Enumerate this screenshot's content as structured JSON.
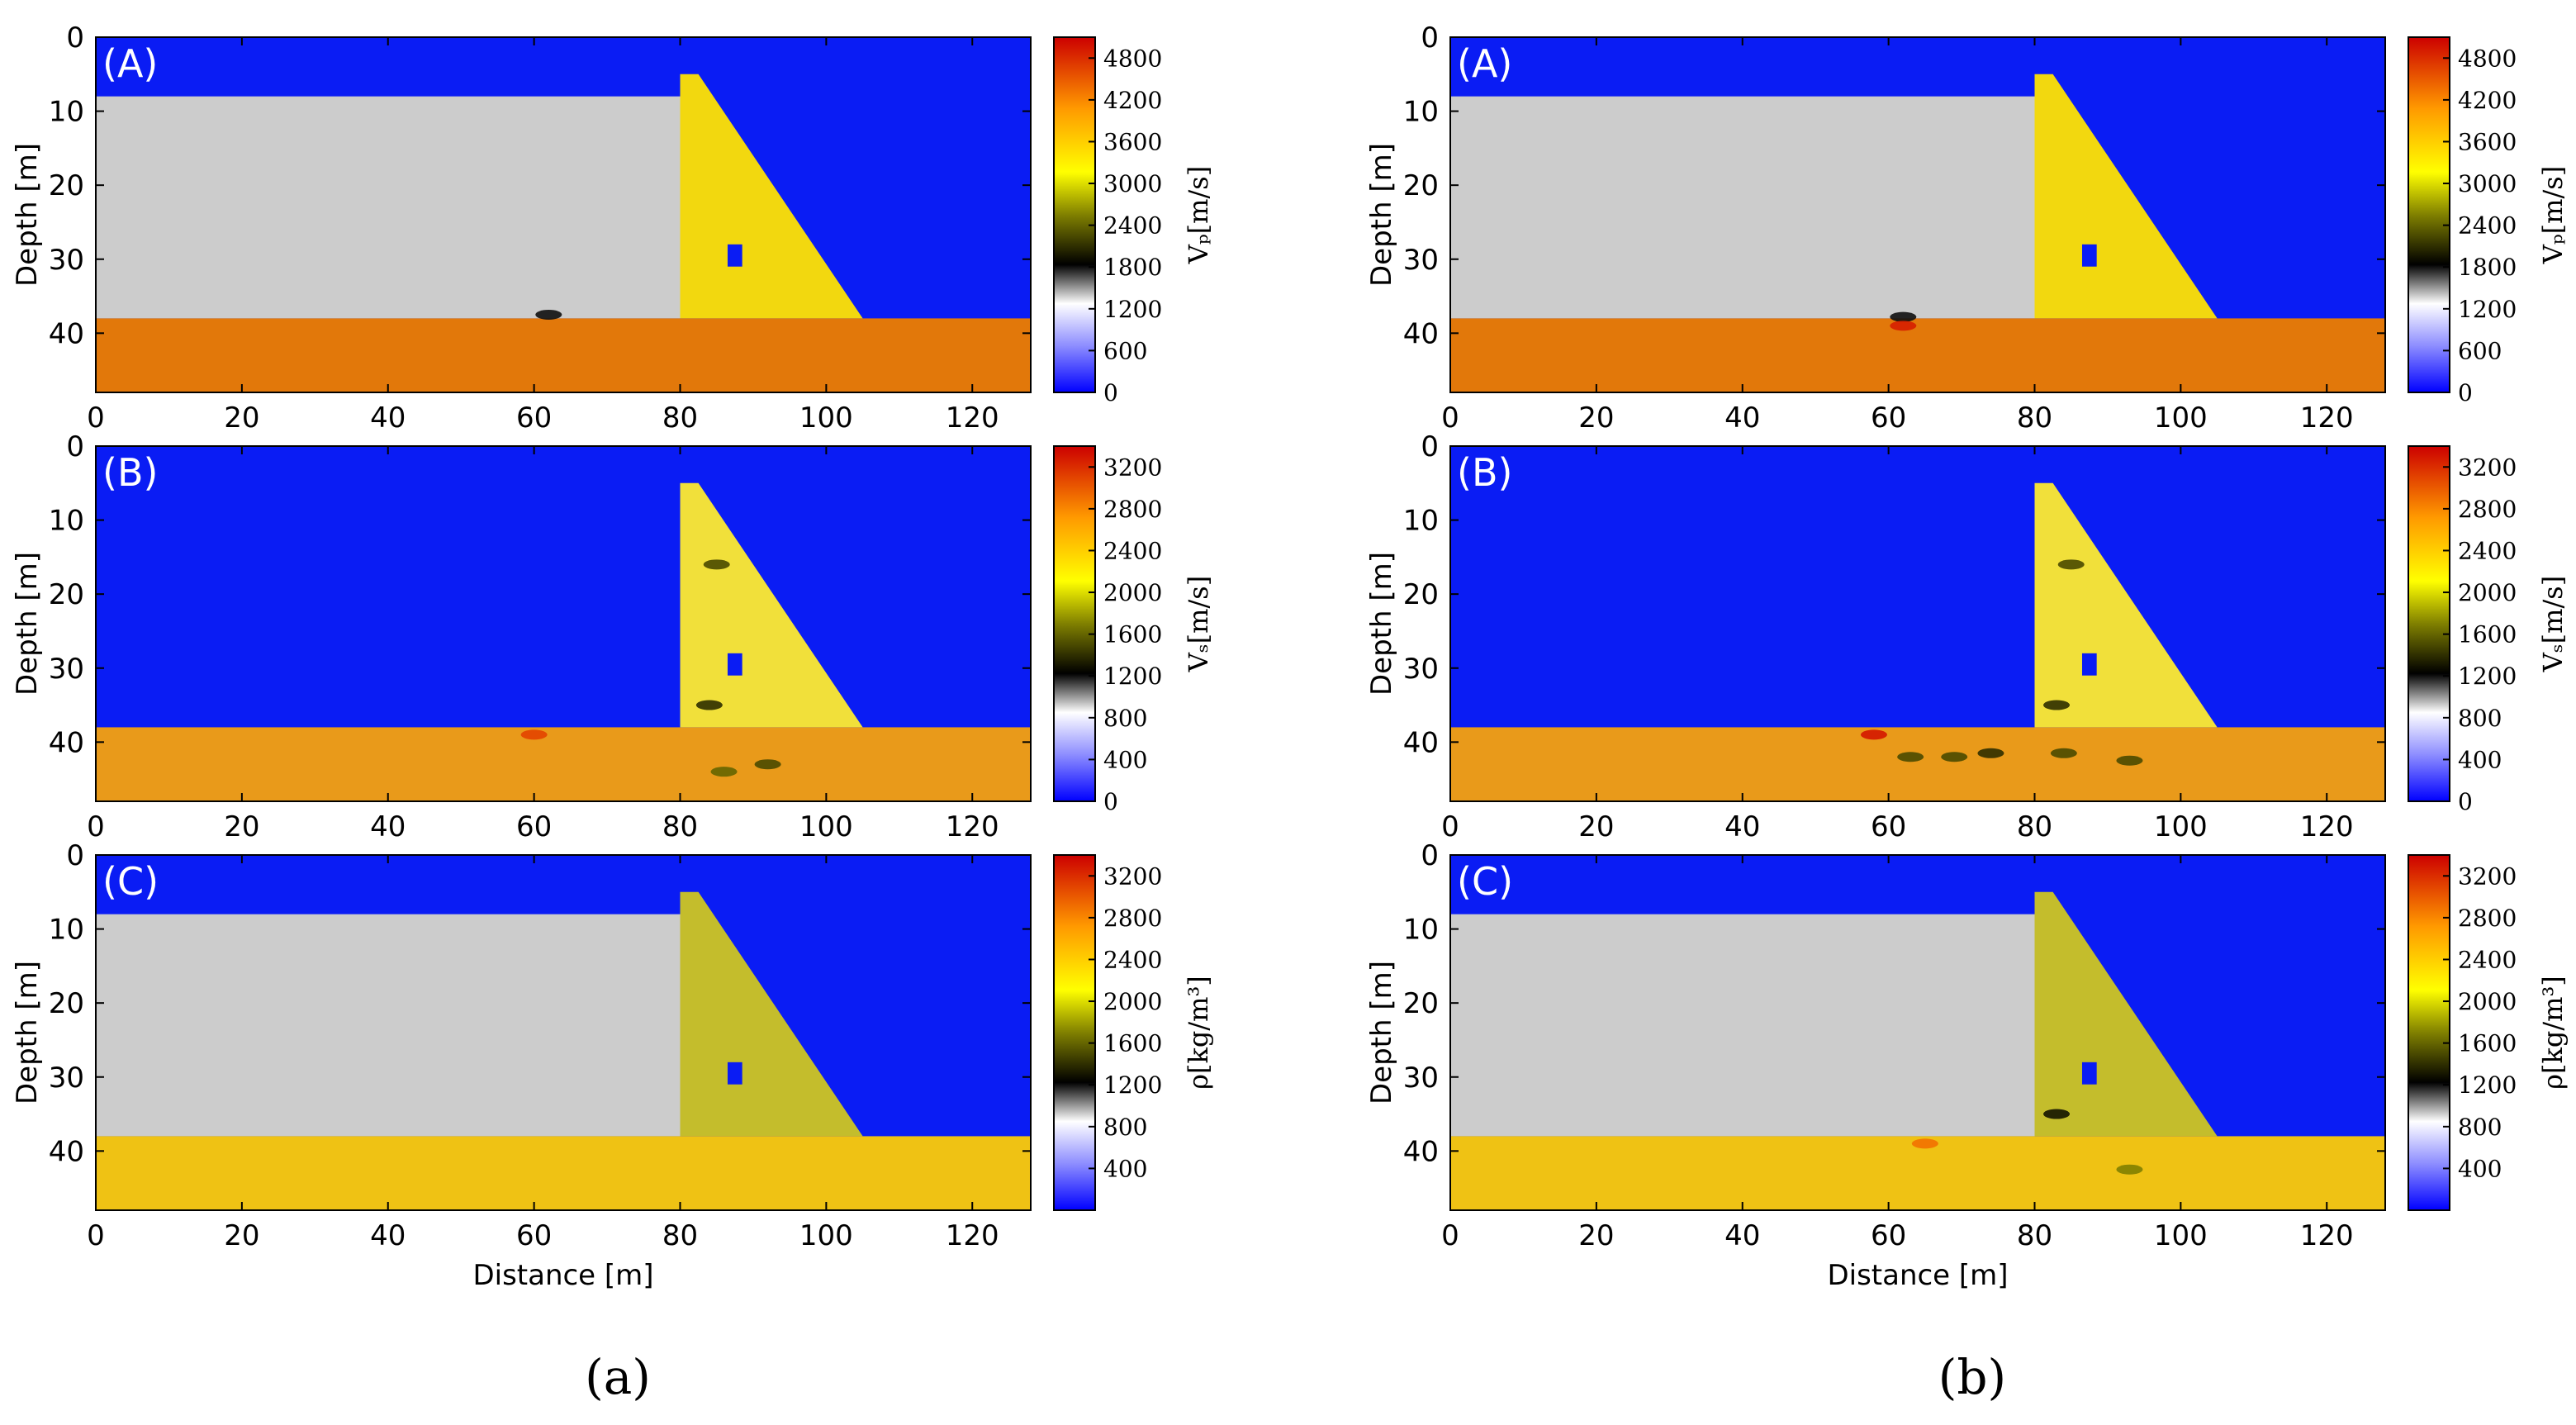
{
  "figure": {
    "subfigure_labels": [
      "(a)",
      "(b)"
    ]
  },
  "colors": {
    "water": "#0a1cf4",
    "reservoir_sediment": "#cccccc",
    "vp_bedrock": "#e2780a",
    "vp_dam": "#f2d80f",
    "vs_bedrock": "#e99a1a",
    "vs_dam": "#f1e03a",
    "rho_bedrock": "#efc214",
    "rho_dam": "#c4bd2c",
    "colormap": [
      {
        "v": 0.0,
        "c": "#0000ff"
      },
      {
        "v": 0.13,
        "c": "#8c8cff"
      },
      {
        "v": 0.25,
        "c": "#ffffff"
      },
      {
        "v": 0.36,
        "c": "#000000"
      },
      {
        "v": 0.5,
        "c": "#808000"
      },
      {
        "v": 0.62,
        "c": "#ffff00"
      },
      {
        "v": 0.8,
        "c": "#ff9900"
      },
      {
        "v": 1.0,
        "c": "#cc0000"
      }
    ]
  },
  "chart_data": [
    {
      "type": "heatmap",
      "panel_label": "(A)",
      "subfigure": "(a)",
      "xlim": [
        0,
        128
      ],
      "ylim": [
        48,
        0
      ],
      "xticks": [
        "0",
        "20",
        "40",
        "60",
        "80",
        "100",
        "120"
      ],
      "yticks": [
        "0",
        "10",
        "20",
        "30",
        "40"
      ],
      "xlabel": "",
      "ylabel": "Depth [m]",
      "colorbar": {
        "label": "Vₚ[m/s]",
        "min": 0,
        "max": 5100,
        "ticks": [
          "0",
          "600",
          "1200",
          "1800",
          "2400",
          "3000",
          "3600",
          "4200",
          "4800"
        ]
      },
      "model": {
        "sediment_top": 8,
        "interface": 38,
        "dam_top": 5,
        "dam_x_left": 80,
        "dam_x_toe": 105,
        "gallery_x": [
          86.5,
          88.5
        ],
        "gallery_z": [
          28,
          31
        ],
        "water_value": 0,
        "sediment_value": 1000,
        "dam_value": 3300,
        "bedrock_value": 4400
      },
      "anomalies": [
        {
          "x": 62,
          "z": 37.5,
          "value": 1800
        }
      ]
    },
    {
      "type": "heatmap",
      "panel_label": "(B)",
      "subfigure": "(a)",
      "xlim": [
        0,
        128
      ],
      "ylim": [
        48,
        0
      ],
      "xticks": [
        "0",
        "20",
        "40",
        "60",
        "80",
        "100",
        "120"
      ],
      "yticks": [
        "0",
        "10",
        "20",
        "30",
        "40"
      ],
      "xlabel": "",
      "ylabel": "Depth [m]",
      "colorbar": {
        "label": "Vₛ[m/s]",
        "min": 0,
        "max": 3400,
        "ticks": [
          "0",
          "400",
          "800",
          "1200",
          "1600",
          "2000",
          "2400",
          "2800",
          "3200"
        ]
      },
      "model": {
        "sediment_top": null,
        "interface": 38,
        "dam_top": 5,
        "dam_x_left": 80,
        "dam_x_toe": 105,
        "gallery_x": [
          86.5,
          88.5
        ],
        "gallery_z": [
          28,
          31
        ],
        "water_value": 0,
        "dam_value": 2150,
        "bedrock_value": 2700
      },
      "anomalies": [
        {
          "x": 85,
          "z": 16,
          "value": 1500
        },
        {
          "x": 84,
          "z": 35,
          "value": 1400
        },
        {
          "x": 86,
          "z": 44,
          "value": 1600
        },
        {
          "x": 92,
          "z": 43,
          "value": 1500
        },
        {
          "x": 60,
          "z": 39,
          "value": 3100
        }
      ]
    },
    {
      "type": "heatmap",
      "panel_label": "(C)",
      "subfigure": "(a)",
      "xlim": [
        0,
        128
      ],
      "ylim": [
        48,
        0
      ],
      "xticks": [
        "0",
        "20",
        "40",
        "60",
        "80",
        "100",
        "120"
      ],
      "yticks": [
        "0",
        "10",
        "20",
        "30",
        "40"
      ],
      "xlabel": "Distance [m]",
      "ylabel": "Depth [m]",
      "colorbar": {
        "label": "ρ[kg/m³]",
        "min": 0,
        "max": 3400,
        "ticks": [
          "400",
          "800",
          "1200",
          "1600",
          "2000",
          "2400",
          "2800",
          "3200"
        ]
      },
      "model": {
        "sediment_top": 8,
        "interface": 38,
        "dam_top": 5,
        "dam_x_left": 80,
        "dam_x_toe": 105,
        "gallery_x": [
          86.5,
          88.5
        ],
        "gallery_z": [
          28,
          31
        ],
        "water_value": 0,
        "sediment_value": 1000,
        "dam_value": 1900,
        "bedrock_value": 2400
      },
      "anomalies": []
    },
    {
      "type": "heatmap",
      "panel_label": "(A)",
      "subfigure": "(b)",
      "xlim": [
        0,
        128
      ],
      "ylim": [
        48,
        0
      ],
      "xticks": [
        "0",
        "20",
        "40",
        "60",
        "80",
        "100",
        "120"
      ],
      "yticks": [
        "0",
        "10",
        "20",
        "30",
        "40"
      ],
      "xlabel": "",
      "ylabel": "Depth [m]",
      "colorbar": {
        "label": "Vₚ[m/s]",
        "min": 0,
        "max": 5100,
        "ticks": [
          "0",
          "600",
          "1200",
          "1800",
          "2400",
          "3000",
          "3600",
          "4200",
          "4800"
        ]
      },
      "model": {
        "sediment_top": 8,
        "interface": 38,
        "dam_top": 5,
        "dam_x_left": 80,
        "dam_x_toe": 105,
        "gallery_x": [
          86.5,
          88.5
        ],
        "gallery_z": [
          28,
          31
        ],
        "water_value": 0,
        "sediment_value": 1000,
        "dam_value": 3300,
        "bedrock_value": 4400
      },
      "anomalies": [
        {
          "x": 62,
          "z": 37.8,
          "value": 1800
        },
        {
          "x": 62,
          "z": 39,
          "value": 4900
        }
      ]
    },
    {
      "type": "heatmap",
      "panel_label": "(B)",
      "subfigure": "(b)",
      "xlim": [
        0,
        128
      ],
      "ylim": [
        48,
        0
      ],
      "xticks": [
        "0",
        "20",
        "40",
        "60",
        "80",
        "100",
        "120"
      ],
      "yticks": [
        "0",
        "10",
        "20",
        "30",
        "40"
      ],
      "xlabel": "",
      "ylabel": "Depth [m]",
      "colorbar": {
        "label": "Vₛ[m/s]",
        "min": 0,
        "max": 3400,
        "ticks": [
          "0",
          "400",
          "800",
          "1200",
          "1600",
          "2000",
          "2400",
          "2800",
          "3200"
        ]
      },
      "model": {
        "sediment_top": null,
        "interface": 38,
        "dam_top": 5,
        "dam_x_left": 80,
        "dam_x_toe": 105,
        "gallery_x": [
          86.5,
          88.5
        ],
        "gallery_z": [
          28,
          31
        ],
        "water_value": 0,
        "dam_value": 2150,
        "bedrock_value": 2700
      },
      "anomalies": [
        {
          "x": 85,
          "z": 16,
          "value": 1500
        },
        {
          "x": 83,
          "z": 35,
          "value": 1400
        },
        {
          "x": 63,
          "z": 42,
          "value": 1500
        },
        {
          "x": 69,
          "z": 42,
          "value": 1500
        },
        {
          "x": 74,
          "z": 41.5,
          "value": 1400
        },
        {
          "x": 84,
          "z": 41.5,
          "value": 1500
        },
        {
          "x": 93,
          "z": 42.5,
          "value": 1500
        },
        {
          "x": 58,
          "z": 39,
          "value": 3300
        }
      ]
    },
    {
      "type": "heatmap",
      "panel_label": "(C)",
      "subfigure": "(b)",
      "xlim": [
        0,
        128
      ],
      "ylim": [
        48,
        0
      ],
      "xticks": [
        "0",
        "20",
        "40",
        "60",
        "80",
        "100",
        "120"
      ],
      "yticks": [
        "0",
        "10",
        "20",
        "30",
        "40"
      ],
      "xlabel": "Distance [m]",
      "ylabel": "Depth [m]",
      "colorbar": {
        "label": "ρ[kg/m³]",
        "min": 0,
        "max": 3400,
        "ticks": [
          "400",
          "800",
          "1200",
          "1600",
          "2000",
          "2400",
          "2800",
          "3200"
        ]
      },
      "model": {
        "sediment_top": 8,
        "interface": 38,
        "dam_top": 5,
        "dam_x_left": 80,
        "dam_x_toe": 105,
        "gallery_x": [
          86.5,
          88.5
        ],
        "gallery_z": [
          28,
          31
        ],
        "water_value": 0,
        "sediment_value": 1000,
        "dam_value": 1900,
        "bedrock_value": 2400
      },
      "anomalies": [
        {
          "x": 83,
          "z": 35,
          "value": 1300
        },
        {
          "x": 65,
          "z": 39,
          "value": 2900
        },
        {
          "x": 93,
          "z": 42.5,
          "value": 1700
        }
      ]
    }
  ]
}
